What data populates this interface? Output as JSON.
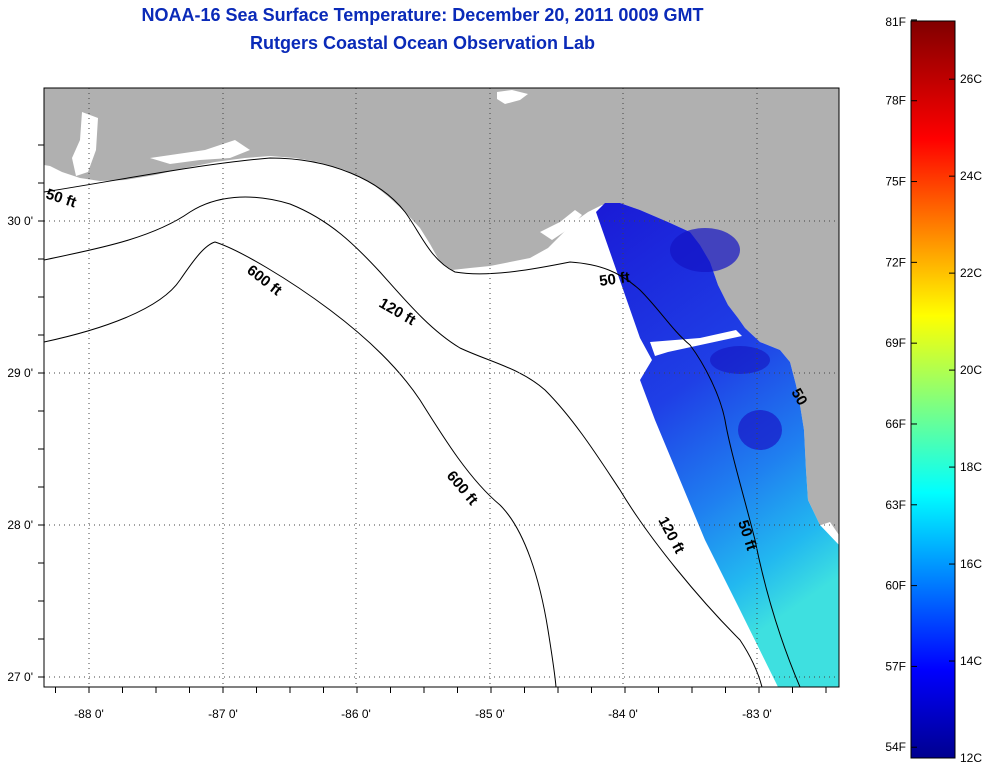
{
  "header": {
    "title_line_1": "NOAA-16 Sea Surface Temperature:  December 20, 2011 0009 GMT",
    "title_line_2": "Rutgers Coastal Ocean Observation Lab"
  },
  "map": {
    "lon_range": [
      -88.33,
      -82.4
    ],
    "lat_range": [
      26.94,
      30.87
    ],
    "lon_ticks": [
      "-88 0'",
      "-87 0'",
      "-86 0'",
      "-85 0'",
      "-84 0'",
      "-83 0'"
    ],
    "lat_ticks": [
      "30 0'",
      "29 0'",
      "28 0'",
      "27 0'"
    ],
    "grid": "dotted",
    "colors": {
      "land": "#b0b0b0",
      "water": "#ffffff",
      "contour": "#000000"
    },
    "contour_labels": [
      {
        "text": "50 ft",
        "id": "50ft-west"
      },
      {
        "text": "600 ft",
        "id": "600ft-north"
      },
      {
        "text": "120 ft",
        "id": "120ft-north"
      },
      {
        "text": "50 ft",
        "id": "50ft-bigbend"
      },
      {
        "text": "600 ft",
        "id": "600ft-south"
      },
      {
        "text": "120 ft",
        "id": "120ft-south"
      },
      {
        "text": "50 ft",
        "id": "50ft-south"
      },
      {
        "text": "50",
        "id": "50ft-coast"
      }
    ]
  },
  "colorbar": {
    "colormap": "jet",
    "celsius_range": [
      12,
      27.2
    ],
    "fahrenheit_labels": [
      "81F",
      "78F",
      "75F",
      "72F",
      "69F",
      "66F",
      "63F",
      "60F",
      "57F",
      "54F"
    ],
    "celsius_labels": [
      "26C",
      "24C",
      "22C",
      "20C",
      "18C",
      "16C",
      "14C",
      "12C"
    ]
  }
}
